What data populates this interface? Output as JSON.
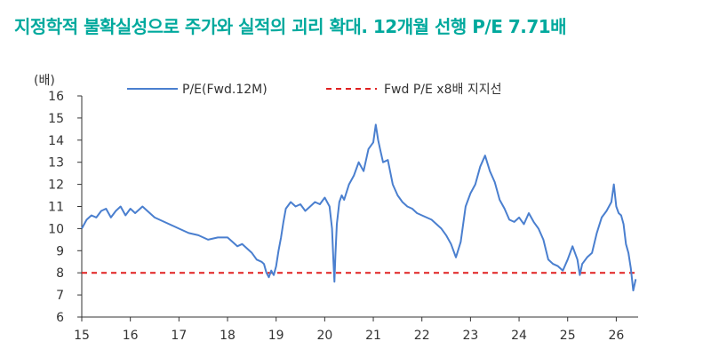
{
  "title": "지정학적 불확실성으로 주가와 실적의 괴리 확대. 12개월 선행 P/E 7.71배",
  "colors": {
    "title": "#00a99d",
    "series": "#4a7fcf",
    "support": "#e02020",
    "axis": "#333333"
  },
  "chart_data": {
    "type": "line",
    "title": "지정학적 불확실성으로 주가와 실적의 괴리 확대. 12개월 선행 P/E 7.71배",
    "ylabel": "(배)",
    "xlabel": "",
    "xlim": [
      15,
      26.45
    ],
    "ylim": [
      6,
      16
    ],
    "x_ticks": [
      15,
      16,
      17,
      18,
      19,
      20,
      21,
      22,
      23,
      24,
      25,
      26
    ],
    "x_tick_labels": [
      "15",
      "16",
      "17",
      "18",
      "19",
      "20",
      "21",
      "22",
      "23",
      "24",
      "25",
      "26"
    ],
    "y_ticks": [
      6,
      7,
      8,
      9,
      10,
      11,
      12,
      13,
      14,
      15,
      16
    ],
    "y_tick_labels": [
      "6",
      "7",
      "8",
      "9",
      "10",
      "11",
      "12",
      "13",
      "14",
      "15",
      "16"
    ],
    "legend_position": "top",
    "grid": false,
    "series": [
      {
        "name": "P/E(Fwd.12M)",
        "style": "solid",
        "color": "#4a7fcf",
        "x": [
          15.0,
          15.1,
          15.2,
          15.3,
          15.4,
          15.5,
          15.6,
          15.7,
          15.8,
          15.9,
          16.0,
          16.1,
          16.2,
          16.25,
          16.35,
          16.5,
          16.7,
          16.9,
          17.0,
          17.2,
          17.4,
          17.6,
          17.8,
          18.0,
          18.1,
          18.2,
          18.3,
          18.4,
          18.5,
          18.6,
          18.7,
          18.75,
          18.8,
          18.85,
          18.9,
          18.95,
          19.0,
          19.05,
          19.1,
          19.15,
          19.2,
          19.3,
          19.4,
          19.5,
          19.6,
          19.7,
          19.8,
          19.9,
          20.0,
          20.1,
          20.15,
          20.18,
          20.2,
          20.22,
          20.25,
          20.3,
          20.35,
          20.4,
          20.5,
          20.6,
          20.7,
          20.8,
          20.9,
          21.0,
          21.05,
          21.1,
          21.15,
          21.2,
          21.3,
          21.4,
          21.5,
          21.6,
          21.7,
          21.8,
          21.9,
          22.0,
          22.2,
          22.4,
          22.5,
          22.6,
          22.7,
          22.8,
          22.9,
          23.0,
          23.1,
          23.2,
          23.3,
          23.4,
          23.5,
          23.6,
          23.7,
          23.8,
          23.9,
          24.0,
          24.1,
          24.2,
          24.3,
          24.4,
          24.5,
          24.6,
          24.7,
          24.8,
          24.9,
          25.0,
          25.1,
          25.2,
          25.25,
          25.3,
          25.4,
          25.5,
          25.6,
          25.7,
          25.8,
          25.9,
          25.95,
          26.0,
          26.05,
          26.1,
          26.15,
          26.2,
          26.25,
          26.3,
          26.35,
          26.4
        ],
        "y": [
          10.0,
          10.4,
          10.6,
          10.5,
          10.8,
          10.9,
          10.5,
          10.8,
          11.0,
          10.6,
          10.9,
          10.7,
          10.9,
          11.0,
          10.8,
          10.5,
          10.3,
          10.1,
          10.0,
          9.8,
          9.7,
          9.5,
          9.6,
          9.6,
          9.4,
          9.2,
          9.3,
          9.1,
          8.9,
          8.6,
          8.5,
          8.4,
          8.0,
          7.8,
          8.1,
          7.9,
          8.3,
          9.0,
          9.6,
          10.3,
          10.9,
          11.2,
          11.0,
          11.1,
          10.8,
          11.0,
          11.2,
          11.1,
          11.4,
          11.0,
          10.0,
          8.5,
          7.6,
          8.8,
          10.2,
          11.2,
          11.5,
          11.3,
          12.0,
          12.4,
          13.0,
          12.6,
          13.6,
          13.9,
          14.7,
          14.0,
          13.5,
          13.0,
          13.1,
          12.0,
          11.5,
          11.2,
          11.0,
          10.9,
          10.7,
          10.6,
          10.4,
          10.0,
          9.7,
          9.3,
          8.7,
          9.4,
          11.0,
          11.6,
          12.0,
          12.8,
          13.3,
          12.6,
          12.1,
          11.3,
          10.9,
          10.4,
          10.3,
          10.5,
          10.2,
          10.7,
          10.3,
          10.0,
          9.5,
          8.6,
          8.4,
          8.3,
          8.1,
          8.6,
          9.2,
          8.6,
          7.9,
          8.4,
          8.7,
          8.9,
          9.8,
          10.5,
          10.8,
          11.2,
          12.0,
          11.0,
          10.7,
          10.6,
          10.2,
          9.3,
          8.9,
          8.2,
          7.2,
          7.71
        ]
      },
      {
        "name": "Fwd P/E x8배 지지선",
        "style": "dashed",
        "color": "#e02020",
        "x": [
          15.0,
          26.45
        ],
        "y": [
          8,
          8
        ]
      }
    ]
  }
}
